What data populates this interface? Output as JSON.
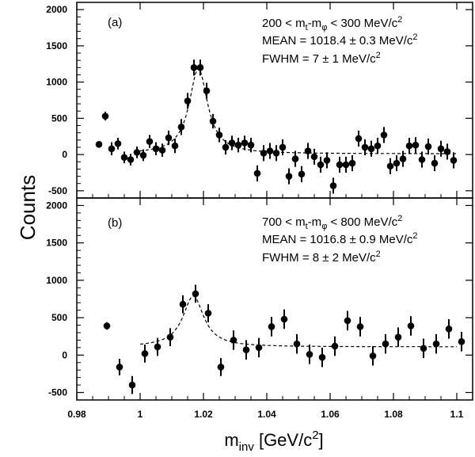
{
  "figure": {
    "ylabel": "Counts",
    "xlabel_main": "m",
    "xlabel_sub": "inv",
    "xlabel_unit_pre": " [GeV/c",
    "xlabel_unit_sup": "2",
    "xlabel_unit_post": "]"
  },
  "chart_data": [
    {
      "type": "scatter",
      "panel_label": "(a)",
      "annotation_range": {
        "lo": "200 < m",
        "sub1": "t",
        "mid": "-m",
        "sub2": "φ",
        "hi": " < 300 MeV/c",
        "sup": "2"
      },
      "annotation_mean": {
        "text": "MEAN = 1018.4 ± 0.3 MeV/c",
        "sup": "2"
      },
      "annotation_fwhm": {
        "text": "FWHM = 7 ± 1 MeV/c",
        "sup": "2"
      },
      "xlim": [
        0.98,
        1.105
      ],
      "ylim": [
        -600,
        2100
      ],
      "xticks": [
        "0.98",
        "1",
        "1.02",
        "1.04",
        "1.06",
        "1.08",
        "1.1"
      ],
      "xtick_values": [
        0.98,
        1.0,
        1.02,
        1.04,
        1.06,
        1.08,
        1.1
      ],
      "yticks": [
        "-500",
        "0",
        "500",
        "1000",
        "1500",
        "2000"
      ],
      "ytick_values": [
        -500,
        0,
        500,
        1000,
        1500,
        2000
      ],
      "fit": {
        "mean": 1.0184,
        "fwhm": 0.007,
        "amp": 1180,
        "baseline": 10,
        "x_from": 1.0,
        "x_to": 1.1
      },
      "points": [
        [
          0.987,
          140,
          25
        ],
        [
          0.989,
          530,
          60
        ],
        [
          0.991,
          80,
          90
        ],
        [
          0.993,
          150,
          80
        ],
        [
          0.995,
          -40,
          80
        ],
        [
          0.997,
          -70,
          80
        ],
        [
          0.999,
          30,
          80
        ],
        [
          1.001,
          -10,
          80
        ],
        [
          1.003,
          180,
          90
        ],
        [
          1.005,
          80,
          90
        ],
        [
          1.007,
          60,
          90
        ],
        [
          1.009,
          230,
          100
        ],
        [
          1.011,
          120,
          100
        ],
        [
          1.013,
          380,
          110
        ],
        [
          1.015,
          740,
          110
        ],
        [
          1.017,
          1200,
          110
        ],
        [
          1.019,
          1200,
          110
        ],
        [
          1.021,
          880,
          110
        ],
        [
          1.023,
          460,
          100
        ],
        [
          1.025,
          270,
          100
        ],
        [
          1.027,
          100,
          100
        ],
        [
          1.029,
          160,
          100
        ],
        [
          1.031,
          130,
          100
        ],
        [
          1.033,
          160,
          100
        ],
        [
          1.035,
          130,
          100
        ],
        [
          1.037,
          -260,
          110
        ],
        [
          1.039,
          20,
          110
        ],
        [
          1.041,
          50,
          110
        ],
        [
          1.043,
          20,
          110
        ],
        [
          1.045,
          100,
          110
        ],
        [
          1.047,
          -300,
          110
        ],
        [
          1.049,
          -60,
          110
        ],
        [
          1.051,
          -270,
          110
        ],
        [
          1.053,
          50,
          110
        ],
        [
          1.055,
          -30,
          110
        ],
        [
          1.057,
          -140,
          110
        ],
        [
          1.059,
          -80,
          110
        ],
        [
          1.061,
          -430,
          110
        ],
        [
          1.063,
          -140,
          110
        ],
        [
          1.065,
          -140,
          110
        ],
        [
          1.067,
          -120,
          110
        ],
        [
          1.069,
          220,
          110
        ],
        [
          1.071,
          100,
          110
        ],
        [
          1.073,
          80,
          110
        ],
        [
          1.075,
          120,
          110
        ],
        [
          1.077,
          270,
          110
        ],
        [
          1.079,
          -160,
          110
        ],
        [
          1.081,
          -120,
          110
        ],
        [
          1.083,
          -60,
          110
        ],
        [
          1.085,
          120,
          110
        ],
        [
          1.087,
          130,
          110
        ],
        [
          1.089,
          -70,
          110
        ],
        [
          1.091,
          110,
          110
        ],
        [
          1.093,
          -120,
          110
        ],
        [
          1.095,
          80,
          110
        ],
        [
          1.097,
          40,
          110
        ],
        [
          1.099,
          -80,
          110
        ]
      ]
    },
    {
      "type": "scatter",
      "panel_label": "(b)",
      "annotation_range": {
        "lo": "700 < m",
        "sub1": "t",
        "mid": "-m",
        "sub2": "φ",
        "hi": " < 800 MeV/c",
        "sup": "2"
      },
      "annotation_mean": {
        "text": "MEAN = 1016.8 ± 0.9 MeV/c",
        "sup": "2"
      },
      "annotation_fwhm": {
        "text": "FWHM = 8 ± 2 MeV/c",
        "sup": "2"
      },
      "xlim": [
        0.98,
        1.105
      ],
      "ylim": [
        -600,
        2100
      ],
      "xticks": [
        "0.98",
        "1",
        "1.02",
        "1.04",
        "1.06",
        "1.08",
        "1.1"
      ],
      "xtick_values": [
        0.98,
        1.0,
        1.02,
        1.04,
        1.06,
        1.08,
        1.1
      ],
      "yticks": [
        "-500",
        "0",
        "500",
        "1000",
        "1500",
        "2000"
      ],
      "ytick_values": [
        -500,
        0,
        500,
        1000,
        1500,
        2000
      ],
      "fit": {
        "mean": 1.0168,
        "fwhm": 0.008,
        "amp": 680,
        "baseline": 110,
        "x_from": 1.0,
        "x_to": 1.1
      },
      "points": [
        [
          0.9895,
          390,
          50
        ],
        [
          0.9935,
          -160,
          110
        ],
        [
          0.9975,
          -400,
          120
        ],
        [
          1.0015,
          20,
          120
        ],
        [
          1.0055,
          110,
          120
        ],
        [
          1.0095,
          240,
          120
        ],
        [
          1.0135,
          680,
          120
        ],
        [
          1.0175,
          820,
          120
        ],
        [
          1.0215,
          560,
          120
        ],
        [
          1.0255,
          -160,
          120
        ],
        [
          1.0295,
          200,
          130
        ],
        [
          1.0335,
          70,
          130
        ],
        [
          1.0375,
          100,
          130
        ],
        [
          1.0415,
          380,
          130
        ],
        [
          1.0455,
          480,
          130
        ],
        [
          1.0495,
          150,
          130
        ],
        [
          1.0535,
          10,
          130
        ],
        [
          1.0575,
          -30,
          130
        ],
        [
          1.0615,
          120,
          130
        ],
        [
          1.0655,
          460,
          130
        ],
        [
          1.0695,
          380,
          130
        ],
        [
          1.0735,
          -10,
          130
        ],
        [
          1.0775,
          150,
          130
        ],
        [
          1.0815,
          240,
          130
        ],
        [
          1.0855,
          390,
          130
        ],
        [
          1.0895,
          90,
          130
        ],
        [
          1.0935,
          150,
          130
        ],
        [
          1.0975,
          350,
          130
        ],
        [
          1.1015,
          180,
          130
        ]
      ]
    }
  ]
}
